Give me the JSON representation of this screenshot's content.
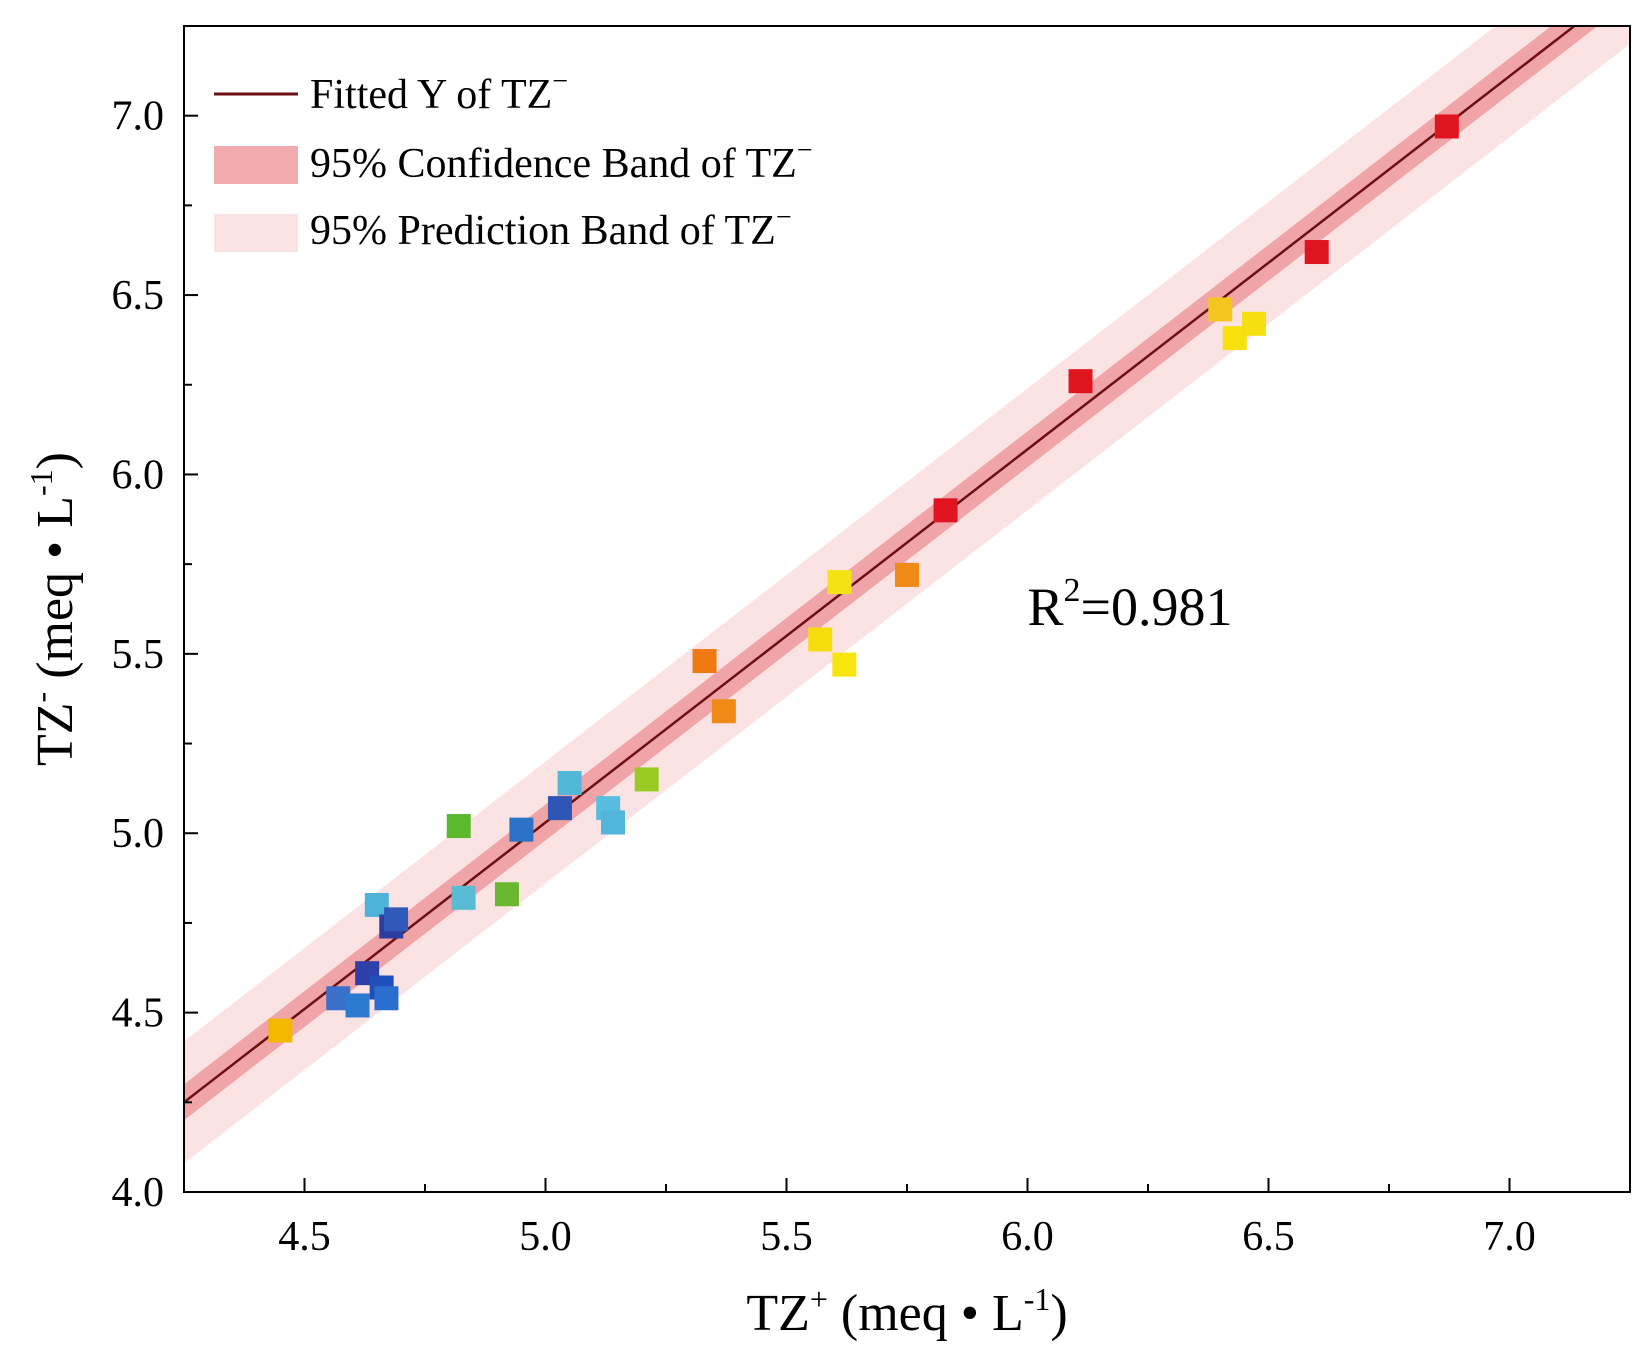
{
  "chart_data": {
    "type": "scatter",
    "xlabel": {
      "base": "TZ",
      "sup": "+",
      "unit": " (meq • L",
      "unit_sup": "-1",
      "close": ")"
    },
    "ylabel": {
      "base": "TZ",
      "sup": "-",
      "unit": " (meq • L",
      "unit_sup": "-1",
      "close": ")"
    },
    "xlim": [
      4.25,
      7.25
    ],
    "ylim": [
      4.0,
      7.25
    ],
    "xticks": [
      4.5,
      5.0,
      5.5,
      6.0,
      6.5,
      7.0
    ],
    "yticks": [
      4.0,
      4.5,
      5.0,
      5.5,
      6.0,
      6.5,
      7.0
    ],
    "xtick_labels": [
      "4.5",
      "5.0",
      "5.5",
      "6.0",
      "6.5",
      "7.0"
    ],
    "ytick_labels": [
      "4.0",
      "4.5",
      "5.0",
      "5.5",
      "6.0",
      "6.5",
      "7.0"
    ],
    "fit": {
      "slope": 1.04,
      "intercept": -0.17,
      "color": "#6b0f12"
    },
    "confidence_half_width": 0.05,
    "prediction_half_width": 0.17,
    "confidence_color": "#ec8f93",
    "prediction_color": "#fbe3e4",
    "legend": {
      "position": "top-left",
      "entries": [
        {
          "label": "Fitted Y of TZ",
          "sup": "−",
          "kind": "line"
        },
        {
          "label": "95% Confidence Band of TZ",
          "sup": "−",
          "kind": "confidence"
        },
        {
          "label": "95% Prediction Band of TZ",
          "sup": "−",
          "kind": "prediction"
        }
      ]
    },
    "annotation": {
      "prefix": "R",
      "sup": "2",
      "suffix": "=0.981",
      "at": [
        6.0,
        5.58
      ]
    },
    "points": [
      {
        "x": 4.45,
        "y": 4.45,
        "color": "#f5b800"
      },
      {
        "x": 4.57,
        "y": 4.54,
        "color": "#3b6fc9"
      },
      {
        "x": 4.61,
        "y": 4.52,
        "color": "#2a7bd1"
      },
      {
        "x": 4.63,
        "y": 4.61,
        "color": "#2f3fa8"
      },
      {
        "x": 4.66,
        "y": 4.57,
        "color": "#1f4fb8"
      },
      {
        "x": 4.67,
        "y": 4.54,
        "color": "#2a6fd0"
      },
      {
        "x": 4.65,
        "y": 4.8,
        "color": "#4fb3d9"
      },
      {
        "x": 4.68,
        "y": 4.74,
        "color": "#2c3d9f"
      },
      {
        "x": 4.69,
        "y": 4.76,
        "color": "#2f5ab9"
      },
      {
        "x": 4.82,
        "y": 5.02,
        "color": "#5cb82d"
      },
      {
        "x": 4.83,
        "y": 4.82,
        "color": "#59bcd4"
      },
      {
        "x": 4.92,
        "y": 4.83,
        "color": "#6ab830"
      },
      {
        "x": 4.95,
        "y": 5.01,
        "color": "#2a72c8"
      },
      {
        "x": 5.03,
        "y": 5.07,
        "color": "#2f55b5"
      },
      {
        "x": 5.05,
        "y": 5.14,
        "color": "#52b7d9"
      },
      {
        "x": 5.13,
        "y": 5.07,
        "color": "#59bde0"
      },
      {
        "x": 5.14,
        "y": 5.03,
        "color": "#52b5dc"
      },
      {
        "x": 5.21,
        "y": 5.15,
        "color": "#9acb24"
      },
      {
        "x": 5.33,
        "y": 5.48,
        "color": "#ef7a12"
      },
      {
        "x": 5.37,
        "y": 5.34,
        "color": "#f08a17"
      },
      {
        "x": 5.57,
        "y": 5.54,
        "color": "#f7dc0c"
      },
      {
        "x": 5.61,
        "y": 5.7,
        "color": "#f5e214"
      },
      {
        "x": 5.62,
        "y": 5.47,
        "color": "#f8e50e"
      },
      {
        "x": 5.75,
        "y": 5.72,
        "color": "#f08a17"
      },
      {
        "x": 5.83,
        "y": 5.9,
        "color": "#e0141e"
      },
      {
        "x": 6.11,
        "y": 6.26,
        "color": "#e0141e"
      },
      {
        "x": 6.4,
        "y": 6.46,
        "color": "#f4c51e"
      },
      {
        "x": 6.43,
        "y": 6.38,
        "color": "#f8e10f"
      },
      {
        "x": 6.47,
        "y": 6.42,
        "color": "#f6df10"
      },
      {
        "x": 6.6,
        "y": 6.62,
        "color": "#e0141e"
      },
      {
        "x": 6.87,
        "y": 6.97,
        "color": "#e0141e"
      }
    ]
  }
}
